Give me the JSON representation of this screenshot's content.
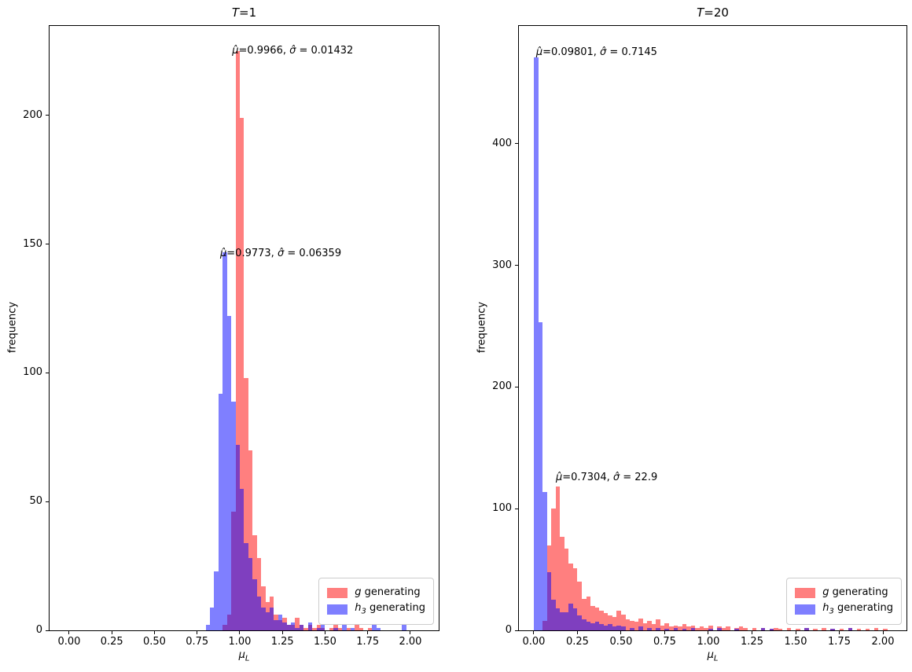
{
  "figure": {
    "background": "#ffffff"
  },
  "chart_data": [
    {
      "type": "histogram",
      "title": {
        "var": "T",
        "rest": "=1"
      },
      "xlabel": {
        "sym": "μ",
        "sub": "L"
      },
      "ylabel": "frequency",
      "xlim": [
        -0.115,
        2.166
      ],
      "ylim": [
        0,
        234.8
      ],
      "xtick_vals": [
        0.0,
        0.25,
        0.5,
        0.75,
        1.0,
        1.25,
        1.5,
        1.75,
        2.0
      ],
      "xtick_labels": [
        "0.00",
        "0.25",
        "0.50",
        "0.75",
        "1.00",
        "1.25",
        "1.50",
        "1.75",
        "2.00"
      ],
      "ytick_vals": [
        0,
        50,
        100,
        150,
        200
      ],
      "ytick_labels": [
        "0",
        "50",
        "100",
        "150",
        "200"
      ],
      "bin_width": 0.025,
      "legend_position": "lower right",
      "grid": false,
      "series": [
        {
          "name": "g generating",
          "color": "rgba(255,0,0,0.5)",
          "bars": [
            [
              0.9,
              2
            ],
            [
              0.925,
              6
            ],
            [
              0.95,
              46
            ],
            [
              0.975,
              225
            ],
            [
              1.0,
              199
            ],
            [
              1.025,
              98
            ],
            [
              1.05,
              70
            ],
            [
              1.075,
              37
            ],
            [
              1.1,
              28
            ],
            [
              1.125,
              17
            ],
            [
              1.15,
              11
            ],
            [
              1.175,
              13
            ],
            [
              1.2,
              6
            ],
            [
              1.225,
              4
            ],
            [
              1.25,
              5
            ],
            [
              1.275,
              2
            ],
            [
              1.3,
              2
            ],
            [
              1.325,
              5
            ],
            [
              1.35,
              2
            ],
            [
              1.375,
              1
            ],
            [
              1.4,
              2
            ],
            [
              1.425,
              1
            ],
            [
              1.45,
              2
            ],
            [
              1.475,
              1
            ],
            [
              1.525,
              1
            ],
            [
              1.55,
              2
            ],
            [
              1.575,
              1
            ],
            [
              1.625,
              1
            ],
            [
              1.675,
              2
            ],
            [
              1.7,
              1
            ],
            [
              1.75,
              1
            ]
          ]
        },
        {
          "name": "h3 generating",
          "color": "rgba(0,0,255,0.5)",
          "bars": [
            [
              0.8,
              2
            ],
            [
              0.825,
              9
            ],
            [
              0.85,
              23
            ],
            [
              0.875,
              92
            ],
            [
              0.9,
              147
            ],
            [
              0.925,
              122
            ],
            [
              0.95,
              89
            ],
            [
              0.975,
              72
            ],
            [
              1.0,
              55
            ],
            [
              1.025,
              34
            ],
            [
              1.05,
              28
            ],
            [
              1.075,
              20
            ],
            [
              1.1,
              13
            ],
            [
              1.125,
              9
            ],
            [
              1.15,
              7
            ],
            [
              1.175,
              9
            ],
            [
              1.2,
              4
            ],
            [
              1.225,
              6
            ],
            [
              1.25,
              3
            ],
            [
              1.275,
              2
            ],
            [
              1.3,
              3
            ],
            [
              1.325,
              1
            ],
            [
              1.35,
              2
            ],
            [
              1.4,
              3
            ],
            [
              1.45,
              1
            ],
            [
              1.475,
              2
            ],
            [
              1.55,
              1
            ],
            [
              1.6,
              2
            ],
            [
              1.65,
              1
            ],
            [
              1.775,
              2
            ],
            [
              1.8,
              1
            ],
            [
              1.95,
              2
            ]
          ]
        }
      ],
      "annotations": [
        {
          "x": 0.955,
          "y": 223,
          "g1": "μ̂",
          "r1": "=0.9966, ",
          "g2": "σ̂",
          "r2": " = 0.01432"
        },
        {
          "x": 0.885,
          "y": 144,
          "g1": "μ̂",
          "r1": "=0.9773, ",
          "g2": "σ̂",
          "r2": " = 0.06359"
        }
      ],
      "legend": {
        "items": [
          {
            "sym": "g",
            "sub": "",
            "label": " generating"
          },
          {
            "sym": "h",
            "sub": "3",
            "label": " generating"
          }
        ]
      }
    },
    {
      "type": "histogram",
      "title": {
        "var": "T",
        "rest": "=20"
      },
      "xlabel": {
        "sym": "μ",
        "sub": "L"
      },
      "ylabel": "frequency",
      "xlim": [
        -0.0854,
        2.135
      ],
      "ylim": [
        0,
        496.8
      ],
      "xtick_vals": [
        0.0,
        0.25,
        0.5,
        0.75,
        1.0,
        1.25,
        1.5,
        1.75,
        2.0
      ],
      "xtick_labels": [
        "0.00",
        "0.25",
        "0.50",
        "0.75",
        "1.00",
        "1.25",
        "1.50",
        "1.75",
        "2.00"
      ],
      "ytick_vals": [
        0,
        100,
        200,
        300,
        400
      ],
      "ytick_labels": [
        "0",
        "100",
        "200",
        "300",
        "400"
      ],
      "bin_width": 0.025,
      "legend_position": "lower right",
      "grid": false,
      "series": [
        {
          "name": "g generating",
          "color": "rgba(255,0,0,0.5)",
          "bars": [
            [
              0.05,
              8
            ],
            [
              0.075,
              70
            ],
            [
              0.1,
              100
            ],
            [
              0.125,
              118
            ],
            [
              0.15,
              77
            ],
            [
              0.175,
              67
            ],
            [
              0.2,
              55
            ],
            [
              0.225,
              51
            ],
            [
              0.25,
              40
            ],
            [
              0.275,
              26
            ],
            [
              0.3,
              28
            ],
            [
              0.325,
              20
            ],
            [
              0.35,
              19
            ],
            [
              0.375,
              16
            ],
            [
              0.4,
              14
            ],
            [
              0.425,
              12
            ],
            [
              0.45,
              11
            ],
            [
              0.475,
              16
            ],
            [
              0.5,
              13
            ],
            [
              0.525,
              9
            ],
            [
              0.55,
              8
            ],
            [
              0.575,
              7
            ],
            [
              0.6,
              10
            ],
            [
              0.625,
              6
            ],
            [
              0.65,
              8
            ],
            [
              0.675,
              5
            ],
            [
              0.7,
              9
            ],
            [
              0.725,
              4
            ],
            [
              0.75,
              6
            ],
            [
              0.775,
              3
            ],
            [
              0.8,
              4
            ],
            [
              0.825,
              3
            ],
            [
              0.85,
              5
            ],
            [
              0.875,
              3
            ],
            [
              0.9,
              4
            ],
            [
              0.925,
              2
            ],
            [
              0.95,
              3
            ],
            [
              0.975,
              2
            ],
            [
              1.0,
              4
            ],
            [
              1.05,
              3
            ],
            [
              1.075,
              2
            ],
            [
              1.1,
              3
            ],
            [
              1.15,
              2
            ],
            [
              1.175,
              3
            ],
            [
              1.2,
              2
            ],
            [
              1.25,
              2
            ],
            [
              1.3,
              2
            ],
            [
              1.35,
              1
            ],
            [
              1.375,
              2
            ],
            [
              1.4,
              1
            ],
            [
              1.45,
              2
            ],
            [
              1.5,
              1
            ],
            [
              1.55,
              2
            ],
            [
              1.6,
              1
            ],
            [
              1.65,
              2
            ],
            [
              1.7,
              1
            ],
            [
              1.75,
              1
            ],
            [
              1.8,
              2
            ],
            [
              1.85,
              1
            ],
            [
              1.9,
              1
            ],
            [
              1.95,
              2
            ],
            [
              2.0,
              1
            ]
          ]
        },
        {
          "name": "h3 generating",
          "color": "rgba(0,0,255,0.5)",
          "bars": [
            [
              0.0,
              471
            ],
            [
              0.025,
              253
            ],
            [
              0.05,
              114
            ],
            [
              0.075,
              48
            ],
            [
              0.1,
              25
            ],
            [
              0.125,
              18
            ],
            [
              0.15,
              15
            ],
            [
              0.175,
              15
            ],
            [
              0.2,
              22
            ],
            [
              0.225,
              18
            ],
            [
              0.25,
              12
            ],
            [
              0.275,
              9
            ],
            [
              0.3,
              7
            ],
            [
              0.325,
              6
            ],
            [
              0.35,
              7
            ],
            [
              0.375,
              5
            ],
            [
              0.4,
              4
            ],
            [
              0.425,
              5
            ],
            [
              0.45,
              3
            ],
            [
              0.475,
              4
            ],
            [
              0.5,
              3
            ],
            [
              0.55,
              2
            ],
            [
              0.6,
              3
            ],
            [
              0.65,
              2
            ],
            [
              0.7,
              2
            ],
            [
              0.75,
              1
            ],
            [
              0.8,
              2
            ],
            [
              0.85,
              1
            ],
            [
              0.9,
              2
            ],
            [
              1.0,
              1
            ],
            [
              1.05,
              2
            ],
            [
              1.15,
              1
            ],
            [
              1.3,
              2
            ],
            [
              1.35,
              1
            ],
            [
              1.55,
              2
            ],
            [
              1.7,
              1
            ],
            [
              1.8,
              2
            ]
          ]
        }
      ],
      "annotations": [
        {
          "x": 0.013,
          "y": 470,
          "g1": "μ̂",
          "r1": "=0.09801, ",
          "g2": "σ̂",
          "r2": " = 0.7145"
        },
        {
          "x": 0.126,
          "y": 121,
          "g1": "μ̂",
          "r1": "=0.7304, ",
          "g2": "σ̂",
          "r2": " = 22.9"
        }
      ],
      "legend": {
        "items": [
          {
            "sym": "g",
            "sub": "",
            "label": " generating"
          },
          {
            "sym": "h",
            "sub": "3",
            "label": " generating"
          }
        ]
      }
    }
  ]
}
